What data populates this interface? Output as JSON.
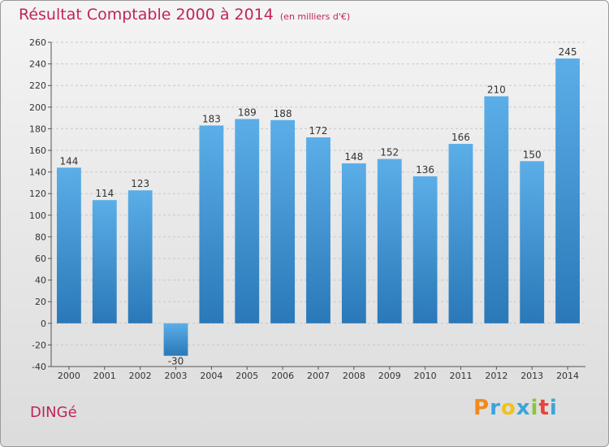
{
  "chart_data": {
    "type": "bar",
    "title": "Résultat Comptable 2000 à 2014",
    "unit": "(en milliers d'€)",
    "categories": [
      "2000",
      "2001",
      "2002",
      "2003",
      "2004",
      "2005",
      "2006",
      "2007",
      "2008",
      "2009",
      "2010",
      "2011",
      "2012",
      "2013",
      "2014"
    ],
    "values": [
      144,
      114,
      123,
      -30,
      183,
      189,
      188,
      172,
      148,
      152,
      136,
      166,
      210,
      150,
      245
    ],
    "ylim": [
      -40,
      260
    ],
    "yticks": [
      -40,
      -20,
      0,
      20,
      40,
      60,
      80,
      100,
      120,
      140,
      160,
      180,
      200,
      220,
      240,
      260
    ],
    "xlabel": "",
    "ylabel": "",
    "grid": true,
    "bar_color_top": "#5baee8",
    "bar_color_bottom": "#2a78b8"
  },
  "commune": "DINGé",
  "logo": {
    "letters": [
      "P",
      "r",
      "o",
      "x",
      "i",
      "t",
      "i"
    ],
    "colors": [
      "#f08a1c",
      "#3aa4dc",
      "#f0c21c",
      "#3aa4dc",
      "#8cc43c",
      "#e8433c",
      "#3aa4dc"
    ]
  },
  "title_color": "#c0245c"
}
